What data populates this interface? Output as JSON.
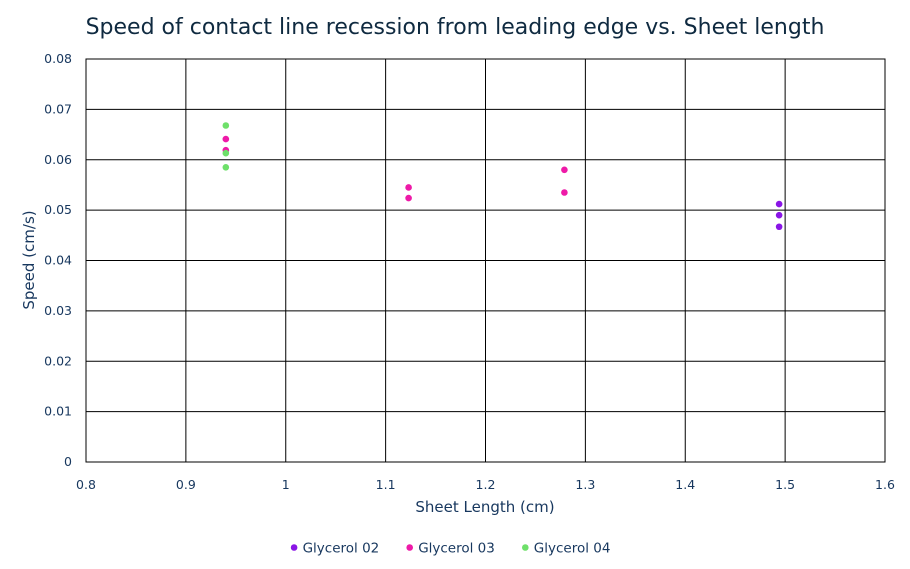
{
  "chart_data": {
    "type": "scatter",
    "title": "Speed of contact line recession from leading edge vs. Sheet length",
    "xlabel": "Sheet Length (cm)",
    "ylabel": "Speed (cm/s)",
    "xlim": [
      0.8,
      1.6
    ],
    "ylim": [
      0,
      0.08
    ],
    "x_ticks": [
      "0.8",
      "0.9",
      "1",
      "1.1",
      "1.2",
      "1.3",
      "1.4",
      "1.5",
      "1.6"
    ],
    "y_ticks": [
      "0",
      "0.01",
      "0.02",
      "0.03",
      "0.04",
      "0.05",
      "0.06",
      "0.07",
      "0.08"
    ],
    "grid": true,
    "legend_position": "bottom",
    "series": [
      {
        "name": "Glycerol 02",
        "color": "#8a15e6",
        "points": [
          {
            "x": 1.494,
            "y": 0.0512
          },
          {
            "x": 1.494,
            "y": 0.049
          },
          {
            "x": 1.494,
            "y": 0.0467
          }
        ]
      },
      {
        "name": "Glycerol 03",
        "color": "#ee1aa8",
        "points": [
          {
            "x": 0.94,
            "y": 0.0641
          },
          {
            "x": 0.94,
            "y": 0.0619
          },
          {
            "x": 1.123,
            "y": 0.0545
          },
          {
            "x": 1.123,
            "y": 0.0524
          },
          {
            "x": 1.279,
            "y": 0.058
          },
          {
            "x": 1.279,
            "y": 0.0535
          }
        ]
      },
      {
        "name": "Glycerol 04",
        "color": "#6ee06a",
        "points": [
          {
            "x": 0.94,
            "y": 0.0668
          },
          {
            "x": 0.94,
            "y": 0.0613
          },
          {
            "x": 0.94,
            "y": 0.0585
          }
        ]
      }
    ]
  }
}
